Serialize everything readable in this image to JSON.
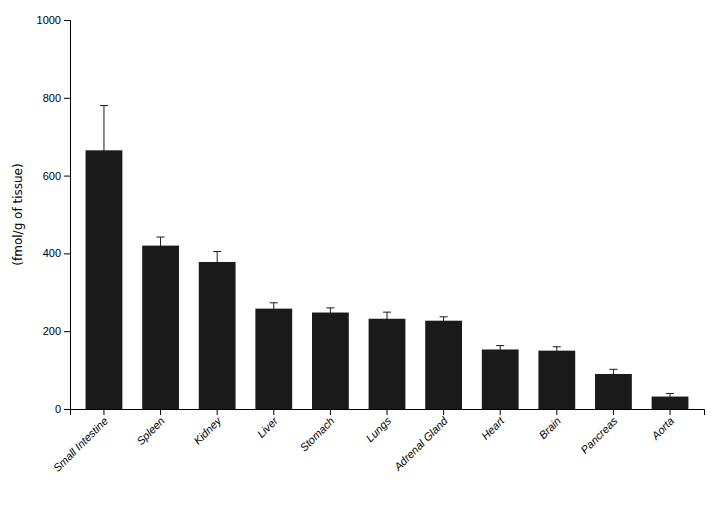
{
  "chart_data": {
    "type": "bar",
    "categories": [
      "Small Intestine",
      "Spleen",
      "Kidney",
      "Liver",
      "Stomach",
      "Lungs",
      "Adrenal Gland",
      "Heart",
      "Brain",
      "Pancreas",
      "Aorta"
    ],
    "values": [
      665,
      420,
      378,
      258,
      248,
      232,
      227,
      153,
      150,
      90,
      32
    ],
    "errors": [
      115,
      22,
      27,
      15,
      12,
      17,
      10,
      10,
      10,
      12,
      8
    ],
    "color": "#1a1a1a",
    "ylabel": "(fmol/g of tissue)",
    "ylim": [
      0,
      1000
    ],
    "yticks": [
      0,
      200,
      400,
      600,
      800,
      1000
    ],
    "grid": false
  }
}
